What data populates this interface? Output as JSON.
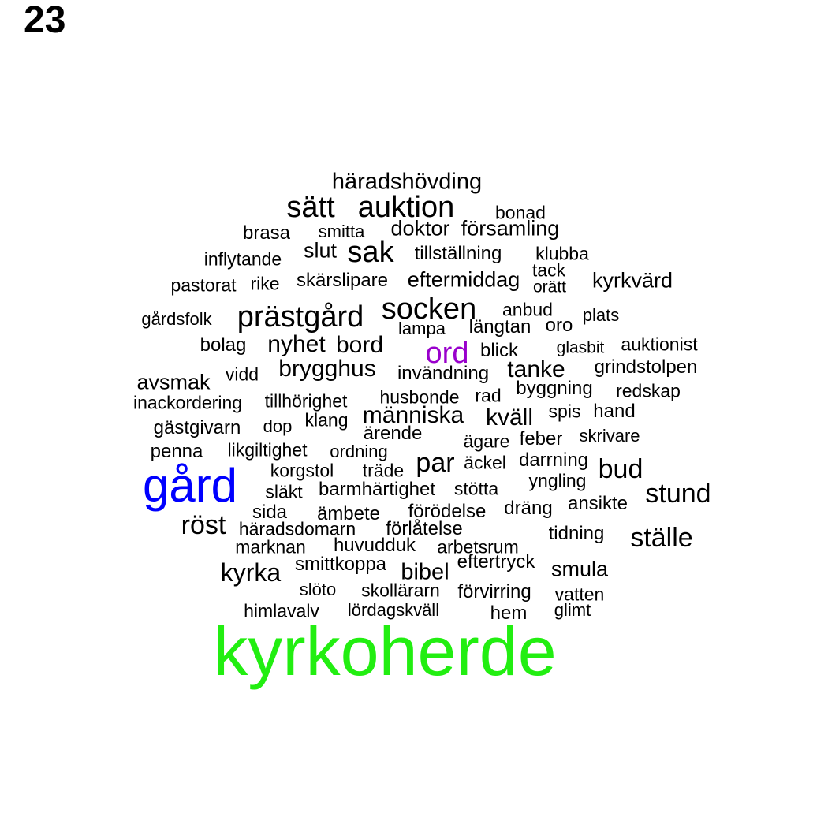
{
  "page_number": "23",
  "colors": {
    "default": "#000000",
    "gård": "#0000ff",
    "ord": "#9900cc",
    "kyrkoherde": "#22ee11"
  },
  "words": [
    "häradshövding",
    "sätt",
    "auktion",
    "bonad",
    "brasa",
    "smitta",
    "doktor",
    "församling",
    "inflytande",
    "slut",
    "sak",
    "tillställning",
    "klubba",
    "tack",
    "pastorat",
    "rike",
    "skärslipare",
    "eftermiddag",
    "orätt",
    "kyrkvärd",
    "gårdsfolk",
    "prästgård",
    "socken",
    "anbud",
    "plats",
    "lampa",
    "längtan",
    "oro",
    "bolag",
    "nyhet",
    "bord",
    "ord",
    "blick",
    "glasbit",
    "auktionist",
    "avsmak",
    "vidd",
    "brygghus",
    "invändning",
    "tanke",
    "grindstolpen",
    "inackordering",
    "tillhörighet",
    "husbonde",
    "rad",
    "byggning",
    "redskap",
    "gästgivarn",
    "dop",
    "klang",
    "människa",
    "kväll",
    "spis",
    "hand",
    "ärende",
    "ägare",
    "feber",
    "skrivare",
    "penna",
    "likgiltighet",
    "ordning",
    "par",
    "äckel",
    "darrning",
    "bud",
    "gård",
    "korgstol",
    "träde",
    "yngling",
    "släkt",
    "barmhärtighet",
    "stötta",
    "stund",
    "sida",
    "ämbete",
    "förödelse",
    "dräng",
    "ansikte",
    "röst",
    "häradsdomarn",
    "förlåtelse",
    "tidning",
    "ställe",
    "marknan",
    "huvudduk",
    "arbetsrum",
    "kyrka",
    "smittkoppa",
    "eftertryck",
    "bibel",
    "smula",
    "slöto",
    "skollärarn",
    "förvirring",
    "vatten",
    "himlavalv",
    "lördagskväll",
    "hem",
    "glimt",
    "kyrkoherde"
  ]
}
